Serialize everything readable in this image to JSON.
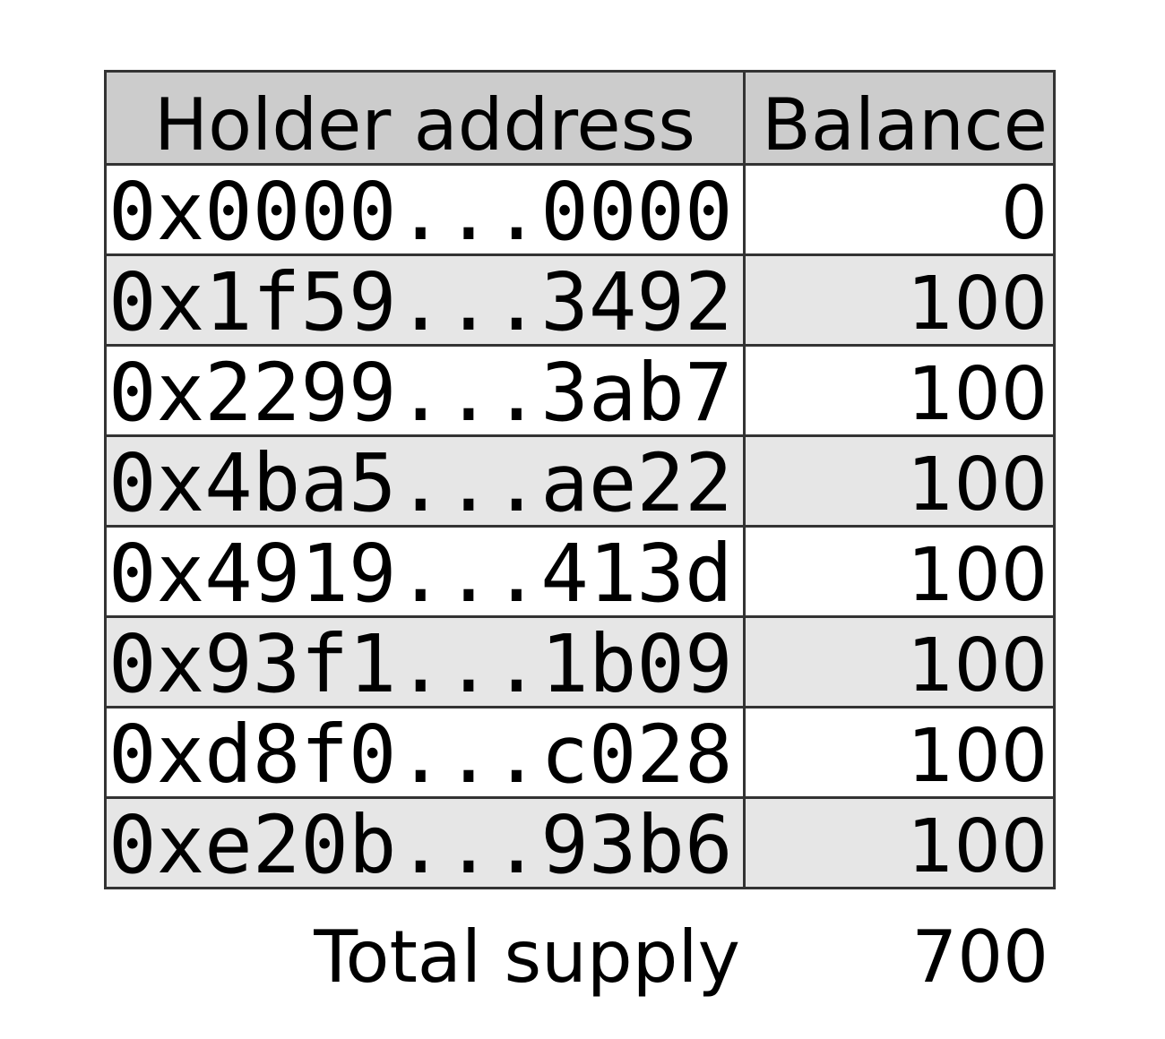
{
  "table": {
    "headers": [
      "Holder address",
      "Balance"
    ],
    "rows": [
      {
        "address": "0x0000...0000",
        "balance": "0"
      },
      {
        "address": "0x1f59...3492",
        "balance": "100"
      },
      {
        "address": "0x2299...3ab7",
        "balance": "100"
      },
      {
        "address": "0x4ba5...ae22",
        "balance": "100"
      },
      {
        "address": "0x4919...413d",
        "balance": "100"
      },
      {
        "address": "0x93f1...1b09",
        "balance": "100"
      },
      {
        "address": "0xd8f0...c028",
        "balance": "100"
      },
      {
        "address": "0xe20b...93b6",
        "balance": "100"
      }
    ],
    "header_bg": "#cccccc",
    "alt_row_bg": "#e6e6e6"
  },
  "total": {
    "label": "Total supply",
    "value": "700"
  }
}
